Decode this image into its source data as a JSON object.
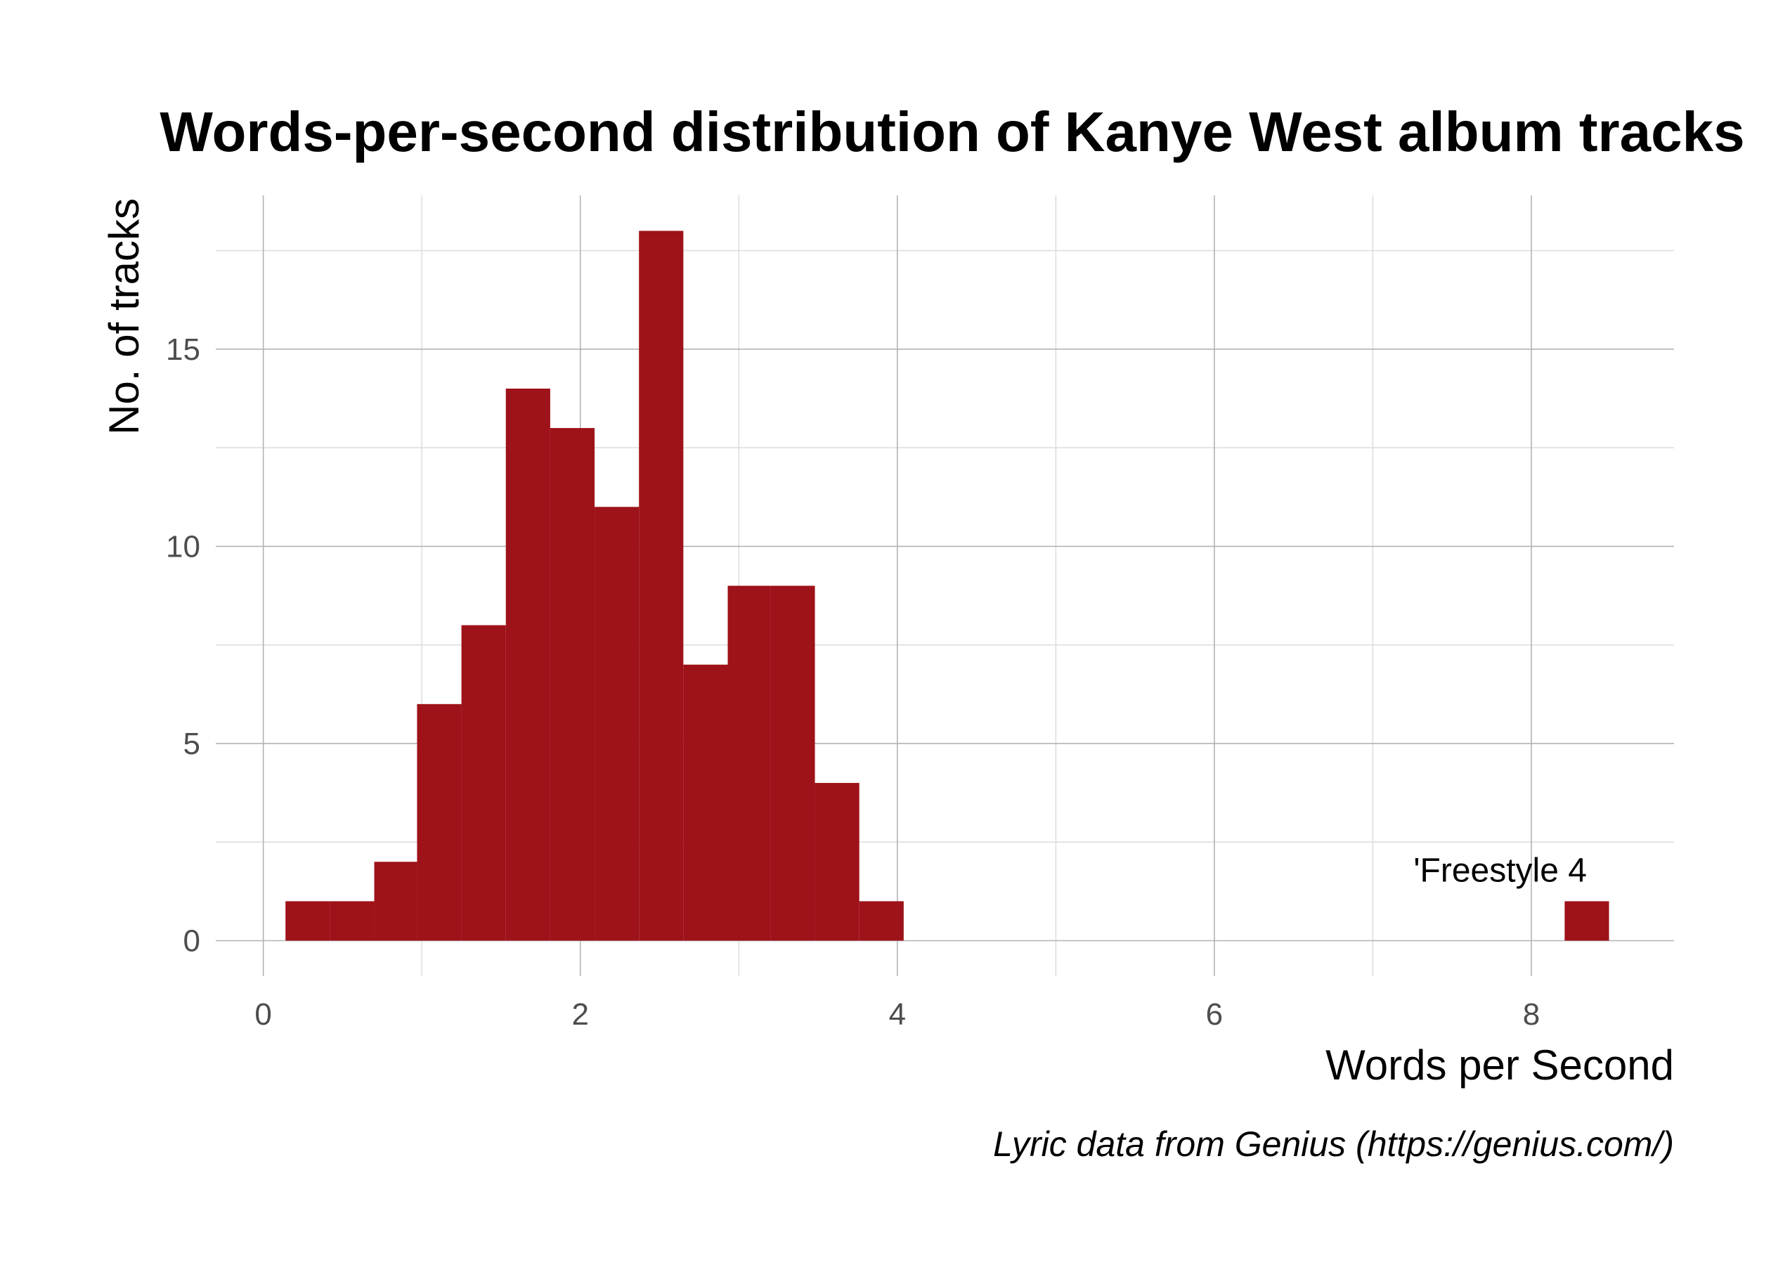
{
  "chart_data": {
    "type": "bar",
    "subtype": "histogram",
    "title": "Words-per-second distribution of Kanye West album tracks",
    "xlabel": "Words per Second",
    "ylabel": "No. of tracks",
    "caption": "Lyric data from Genius (https://genius.com/)",
    "xlim": [
      -0.3,
      8.9
    ],
    "ylim": [
      -0.9,
      18.9
    ],
    "x_ticks": [
      0,
      2,
      4,
      6,
      8
    ],
    "y_ticks": [
      0,
      5,
      10,
      15
    ],
    "grid": true,
    "bar_color": "#9e1219",
    "bins": [
      {
        "x0": 0.14,
        "x1": 0.42,
        "count": 1
      },
      {
        "x0": 0.42,
        "x1": 0.7,
        "count": 1
      },
      {
        "x0": 0.7,
        "x1": 0.97,
        "count": 2
      },
      {
        "x0": 0.97,
        "x1": 1.25,
        "count": 6
      },
      {
        "x0": 1.25,
        "x1": 1.53,
        "count": 8
      },
      {
        "x0": 1.53,
        "x1": 1.81,
        "count": 14
      },
      {
        "x0": 1.81,
        "x1": 2.09,
        "count": 13
      },
      {
        "x0": 2.09,
        "x1": 2.37,
        "count": 11
      },
      {
        "x0": 2.37,
        "x1": 2.65,
        "count": 18
      },
      {
        "x0": 2.65,
        "x1": 2.93,
        "count": 7
      },
      {
        "x0": 2.93,
        "x1": 3.2,
        "count": 9
      },
      {
        "x0": 3.2,
        "x1": 3.48,
        "count": 9
      },
      {
        "x0": 3.48,
        "x1": 3.76,
        "count": 4
      },
      {
        "x0": 3.76,
        "x1": 4.04,
        "count": 1
      },
      {
        "x0": 8.21,
        "x1": 8.49,
        "count": 1
      }
    ],
    "annotations": [
      {
        "text": "'Freestyle 4",
        "x": 8.35,
        "y": 1.5
      }
    ]
  }
}
